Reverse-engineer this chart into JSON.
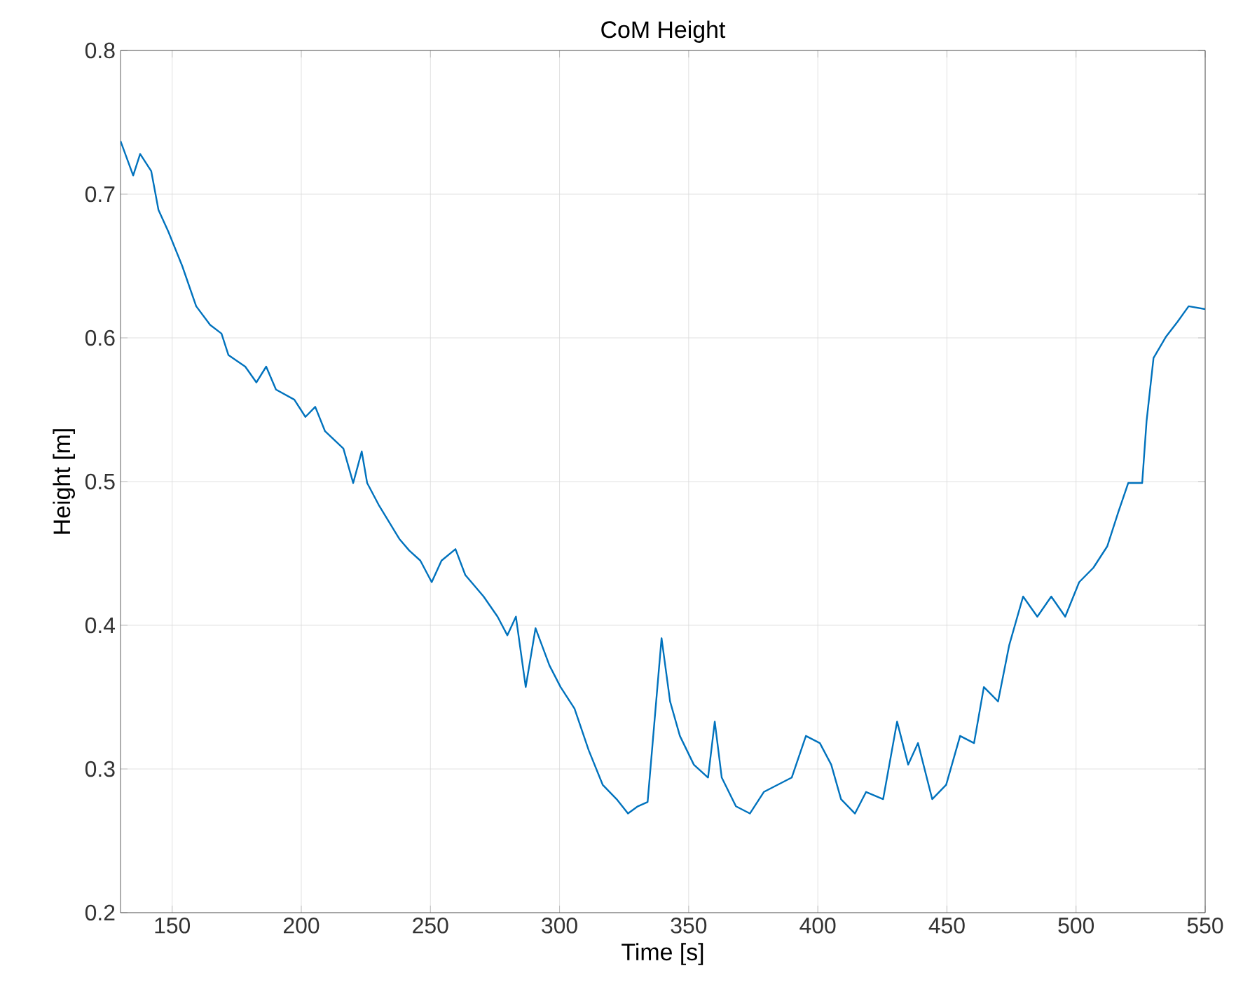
{
  "chart_data": {
    "type": "line",
    "title": "CoM Height",
    "xlabel": "Time [s]",
    "ylabel": "Height [m]",
    "xlim": [
      130,
      550
    ],
    "ylim": [
      0.2,
      0.8
    ],
    "xticks": [
      150,
      200,
      250,
      300,
      350,
      400,
      450,
      500,
      550
    ],
    "yticks": [
      0.2,
      0.3,
      0.4,
      0.5,
      0.6,
      0.7,
      0.8
    ],
    "grid": true,
    "series": [
      {
        "color": "#0072bd",
        "x": [
          130,
          134.9,
          137.6,
          141.9,
          144.7,
          148.5,
          153.9,
          159.3,
          164.7,
          169.1,
          171.8,
          178.3,
          182.6,
          186.4,
          190.2,
          197.3,
          201.6,
          205.4,
          209.2,
          216.3,
          220.1,
          223.4,
          225.5,
          229.9,
          238.0,
          241.8,
          246.1,
          250.5,
          254.3,
          259.7,
          263.5,
          270.6,
          276.0,
          279.8,
          283.1,
          286.9,
          290.7,
          296.1,
          300.4,
          305.8,
          311.3,
          316.7,
          322.1,
          326.5,
          330.3,
          334.1,
          339.5,
          342.8,
          346.6,
          352.0,
          357.5,
          360.1,
          362.8,
          368.3,
          373.7,
          379.1,
          384.5,
          389.9,
          395.4,
          400.8,
          405.2,
          409.0,
          414.4,
          418.7,
          425.3,
          430.7,
          435.0,
          438.8,
          444.3,
          449.7,
          455.1,
          460.5,
          464.3,
          469.8,
          474.1,
          479.5,
          485.0,
          490.4,
          495.8,
          501.2,
          506.7,
          512.1,
          516.4,
          520.2,
          525.6,
          527.3,
          530.0,
          534.9,
          539.2,
          543.6,
          550
        ],
        "values": [
          0.737,
          0.713,
          0.728,
          0.716,
          0.689,
          0.674,
          0.65,
          0.622,
          0.609,
          0.603,
          0.588,
          0.58,
          0.569,
          0.58,
          0.564,
          0.557,
          0.545,
          0.552,
          0.535,
          0.523,
          0.499,
          0.521,
          0.499,
          0.484,
          0.46,
          0.452,
          0.445,
          0.43,
          0.445,
          0.453,
          0.435,
          0.42,
          0.406,
          0.393,
          0.406,
          0.357,
          0.398,
          0.372,
          0.357,
          0.342,
          0.313,
          0.289,
          0.279,
          0.269,
          0.274,
          0.277,
          0.391,
          0.347,
          0.323,
          0.303,
          0.294,
          0.333,
          0.294,
          0.274,
          0.269,
          0.284,
          0.289,
          0.294,
          0.323,
          0.318,
          0.303,
          0.279,
          0.269,
          0.284,
          0.279,
          0.333,
          0.303,
          0.318,
          0.279,
          0.289,
          0.323,
          0.318,
          0.357,
          0.347,
          0.386,
          0.42,
          0.406,
          0.42,
          0.406,
          0.43,
          0.44,
          0.455,
          0.479,
          0.499,
          0.499,
          0.542,
          0.586,
          0.601,
          0.611,
          0.622,
          0.62
        ]
      }
    ]
  }
}
